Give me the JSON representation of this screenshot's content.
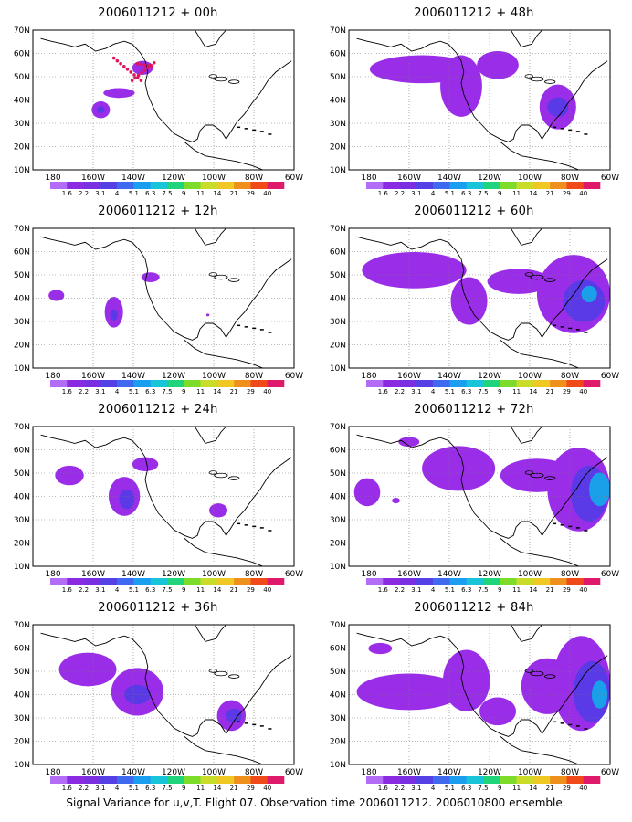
{
  "panels": [
    {
      "title": "2006011212 + 00h",
      "marks": "track"
    },
    {
      "title": "2006011212 + 12h"
    },
    {
      "title": "2006011212 + 24h"
    },
    {
      "title": "2006011212 + 36h"
    },
    {
      "title": "2006011212 + 48h"
    },
    {
      "title": "2006011212 + 60h"
    },
    {
      "title": "2006011212 + 72h"
    },
    {
      "title": "2006011212 + 84h"
    }
  ],
  "map": {
    "lon_range": [
      -190,
      -60
    ],
    "lat_range": [
      10,
      70
    ],
    "grid": "dotted",
    "lon_labels": [
      "180",
      "160W",
      "140W",
      "120W",
      "100W",
      "80W",
      "60W"
    ],
    "lat_labels": [
      "10N",
      "20N",
      "30N",
      "40N",
      "50N",
      "60N",
      "70N"
    ]
  },
  "colorbar": {
    "labels": [
      "1.6",
      "2.2",
      "3.1",
      "4",
      "5.1",
      "6.3",
      "7.5",
      "9",
      "11",
      "14",
      "21",
      "29",
      "40"
    ],
    "colors": [
      "#b36cf5",
      "#8a2be2",
      "#7a2fe0",
      "#5540e6",
      "#3f6af0",
      "#1a9ef0",
      "#18c4d8",
      "#1fd47a",
      "#7ddc2a",
      "#c9dc2a",
      "#f0c824",
      "#f0901c",
      "#f04a1a",
      "#e01a6a"
    ]
  },
  "footer": "Signal Variance for u,v,T. Flight 07. Observation time 2006011212. 2006010800 ensemble."
}
